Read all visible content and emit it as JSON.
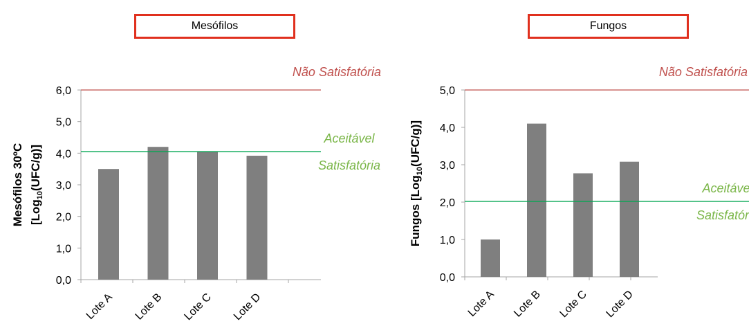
{
  "chart_data": [
    {
      "type": "bar",
      "title": "Mesófilos",
      "ylabel": "Mesófilos 30ºC [Log10(UFC/g)]",
      "ylabel_line1": "Mesófilos 30ºC",
      "ylabel_line2_prefix": "[Log",
      "ylabel_line2_sub": "10",
      "ylabel_line2_suffix": "(UFC/g)]",
      "categories": [
        "Lote A",
        "Lote B",
        "Lote C",
        "Lote D"
      ],
      "values": [
        3.5,
        4.2,
        4.05,
        3.92
      ],
      "ylim": [
        0,
        6
      ],
      "yticks": [
        "0,0",
        "1,0",
        "2,0",
        "3,0",
        "4,0",
        "5,0",
        "6,0"
      ],
      "reference_lines": [
        {
          "value": 6.0,
          "label": "Não Satisfatória",
          "color": "#c0504d"
        },
        {
          "value": 4.05,
          "label_above": "Aceitável",
          "label_below": "Satisfatória",
          "color": "#00a651"
        }
      ]
    },
    {
      "type": "bar",
      "title": "Fungos",
      "ylabel": "Fungos [Log10(UFC/g)]",
      "ylabel_line1": "Fungos [Log",
      "ylabel_line1_sub": "10",
      "ylabel_line1_suffix": "(UFC/g)]",
      "categories": [
        "Lote A",
        "Lote B",
        "Lote C",
        "Lote D"
      ],
      "values": [
        1.0,
        4.1,
        2.77,
        3.08
      ],
      "ylim": [
        0,
        5
      ],
      "yticks": [
        "0,0",
        "1,0",
        "2,0",
        "3,0",
        "4,0",
        "5,0"
      ],
      "reference_lines": [
        {
          "value": 5.0,
          "label": "Não Satisfatória",
          "color": "#c0504d"
        },
        {
          "value": 2.02,
          "label_above": "Aceitável",
          "label_below": "Satisfatória",
          "color": "#00a651"
        }
      ]
    }
  ],
  "colors": {
    "bar": "#7f7f7f",
    "red_line": "#c0504d",
    "green_line": "#00a651",
    "green_text": "#7ab648",
    "title_border": "#e0301e",
    "axis": "#a6a6a6"
  }
}
